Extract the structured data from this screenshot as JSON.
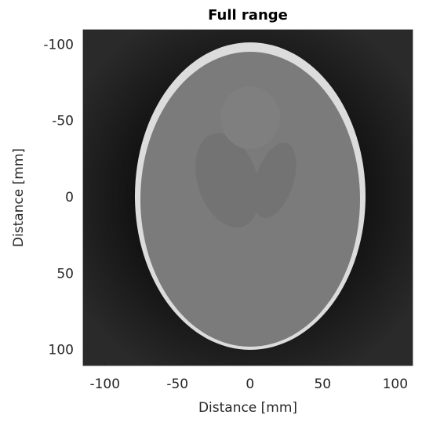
{
  "chart_data": {
    "type": "image",
    "title": "Full range",
    "x_label": "Distance [mm]",
    "y_label": "Distance [mm]",
    "xlim": [
      -115,
      112
    ],
    "ylim": [
      -110,
      110
    ],
    "y_reversed": true,
    "xticks": [
      -100,
      -50,
      0,
      50,
      100
    ],
    "yticks": [
      -100,
      -50,
      0,
      50,
      100
    ]
  }
}
